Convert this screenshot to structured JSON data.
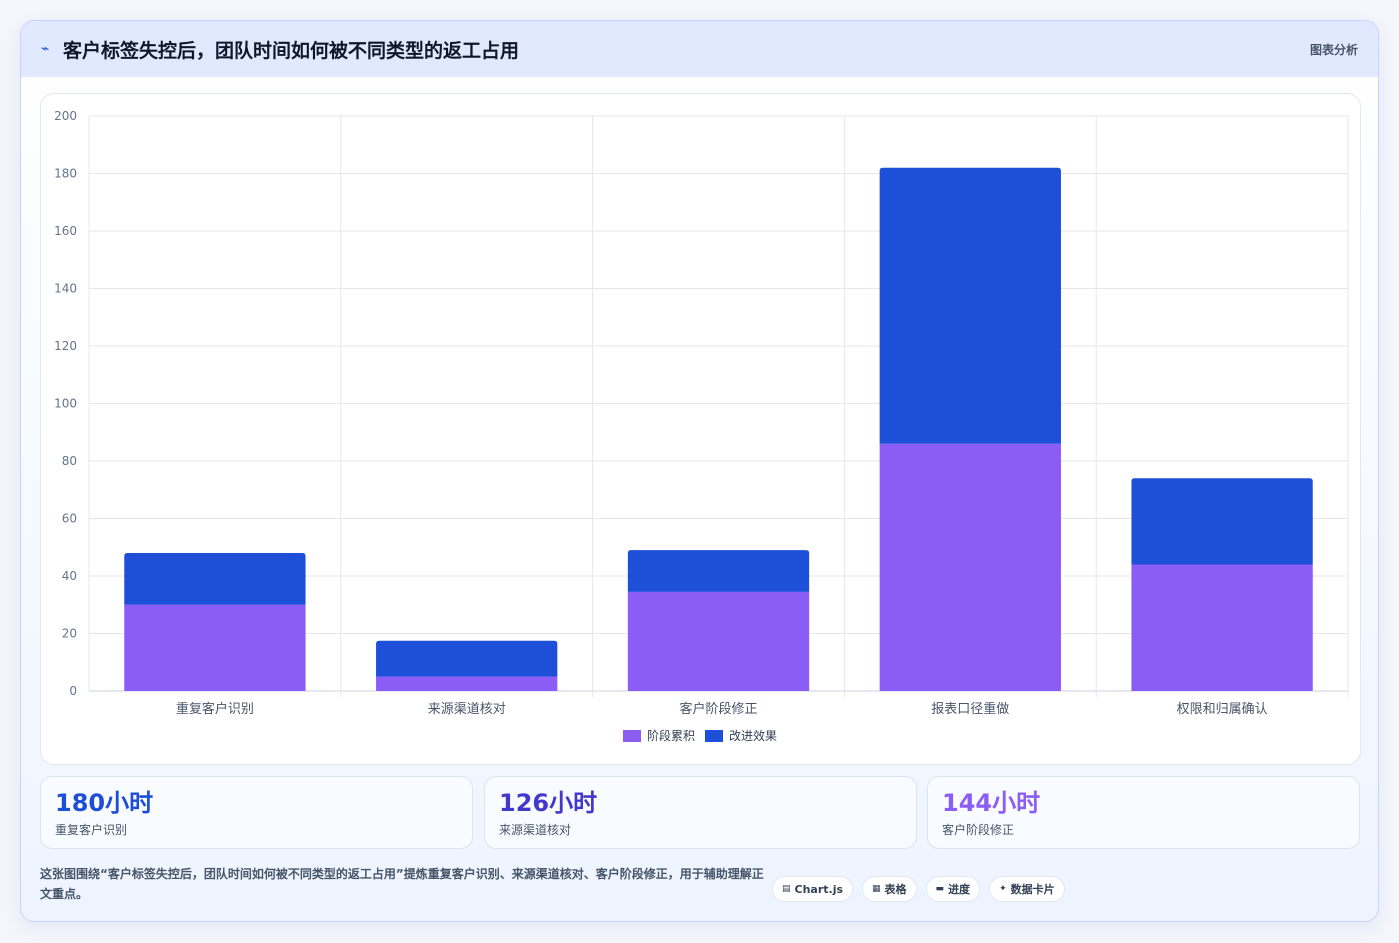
{
  "header": {
    "icon": "chart-line-icon",
    "title": "客户标签失控后，团队时间如何被不同类型的返工占用",
    "tag": "图表分析"
  },
  "chart_data": {
    "type": "bar",
    "stacked": true,
    "categories": [
      "重复客户识别",
      "来源渠道核对",
      "客户阶段修正",
      "报表口径重做",
      "权限和归属确认"
    ],
    "series": [
      {
        "name": "阶段累积",
        "color": "#8b5cf6",
        "values": [
          30,
          5,
          34.5,
          86,
          44
        ]
      },
      {
        "name": "改进效果",
        "color": "#1d4fd8",
        "values": [
          18,
          12.5,
          14.5,
          96,
          30
        ]
      }
    ],
    "ylim": [
      0,
      200
    ],
    "yticks": [
      0,
      20,
      40,
      60,
      80,
      100,
      120,
      140,
      160,
      180,
      200
    ],
    "grid": true,
    "legend_position": "bottom"
  },
  "stats": [
    {
      "value": "180小时",
      "label": "重复客户识别",
      "color": "#1d4ed8"
    },
    {
      "value": "126小时",
      "label": "来源渠道核对",
      "color": "#4338ca"
    },
    {
      "value": "144小时",
      "label": "客户阶段修正",
      "color": "#8b5cf6"
    }
  ],
  "description": "这张图围绕“客户标签失控后，团队时间如何被不同类型的返工占用”提炼重复客户识别、来源渠道核对、客户阶段修正，用于辅助理解正文重点。",
  "pills": [
    {
      "icon": "table-icon",
      "label": "Chart.js"
    },
    {
      "icon": "grid-icon",
      "label": "表格"
    },
    {
      "icon": "progress-icon",
      "label": "进度"
    },
    {
      "icon": "sparkle-icon",
      "label": "数据卡片"
    }
  ]
}
